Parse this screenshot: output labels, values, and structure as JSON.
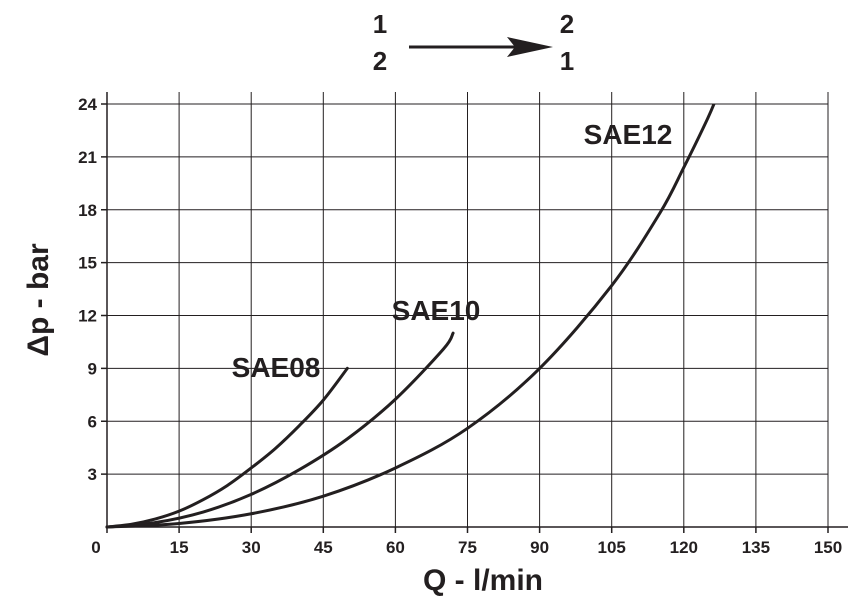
{
  "chart_data": {
    "type": "line",
    "title": "",
    "xlabel": "Q - l/min",
    "ylabel": "Δp - bar",
    "xlim": [
      0,
      150
    ],
    "ylim": [
      0,
      24
    ],
    "x_ticks": [
      0,
      15,
      30,
      45,
      60,
      75,
      90,
      105,
      120,
      135,
      150
    ],
    "x_tick_labels": [
      "0",
      "15",
      "30",
      "45",
      "60",
      "75",
      "90",
      "105",
      "120",
      "135",
      "150"
    ],
    "y_ticks": [
      3,
      6,
      9,
      12,
      15,
      18,
      21,
      24
    ],
    "y_tick_labels": [
      "3",
      "6",
      "9",
      "12",
      "15",
      "18",
      "21",
      "24"
    ],
    "grid": true,
    "legend": "none",
    "line_color": "#231f20",
    "grid_color": "#231f20",
    "series": [
      {
        "name": "SAE08",
        "x": [
          0,
          5,
          10,
          15,
          20,
          25,
          30,
          35,
          40,
          45,
          50
        ],
        "y": [
          0,
          0.15,
          0.45,
          0.9,
          1.55,
          2.35,
          3.35,
          4.45,
          5.75,
          7.2,
          9.0
        ]
      },
      {
        "name": "SAE10",
        "x": [
          0,
          10,
          20,
          30,
          40,
          50,
          60,
          70,
          72
        ],
        "y": [
          0,
          0.25,
          0.85,
          1.85,
          3.25,
          5.0,
          7.25,
          10.1,
          11.0
        ]
      },
      {
        "name": "SAE12",
        "x": [
          0,
          15,
          30,
          45,
          60,
          75,
          90,
          105,
          115,
          120,
          125,
          127
        ],
        "y": [
          0,
          0.2,
          0.75,
          1.75,
          3.35,
          5.6,
          9.0,
          13.7,
          17.8,
          20.4,
          23.2,
          24.5
        ]
      }
    ]
  },
  "flow_indicator": {
    "row1_from": "1",
    "row2_from": "2",
    "row1_to": "2",
    "row2_to": "1"
  }
}
